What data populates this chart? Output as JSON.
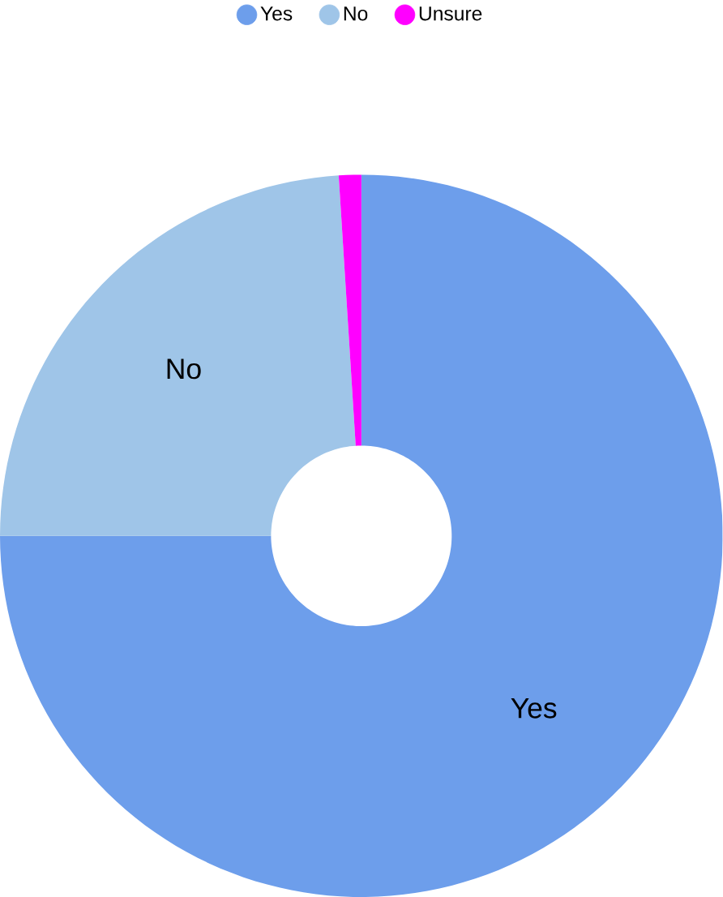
{
  "chart_data": {
    "type": "donut",
    "categories": [
      "Yes",
      "No",
      "Unsure"
    ],
    "values": [
      75,
      24,
      1
    ],
    "colors": [
      "#6d9eeb",
      "#9fc5e8",
      "#ff00ff"
    ],
    "legend": "top",
    "annotations": [
      {
        "text": "No",
        "x": "No"
      },
      {
        "text": "Yes",
        "x": "Yes"
      }
    ]
  }
}
